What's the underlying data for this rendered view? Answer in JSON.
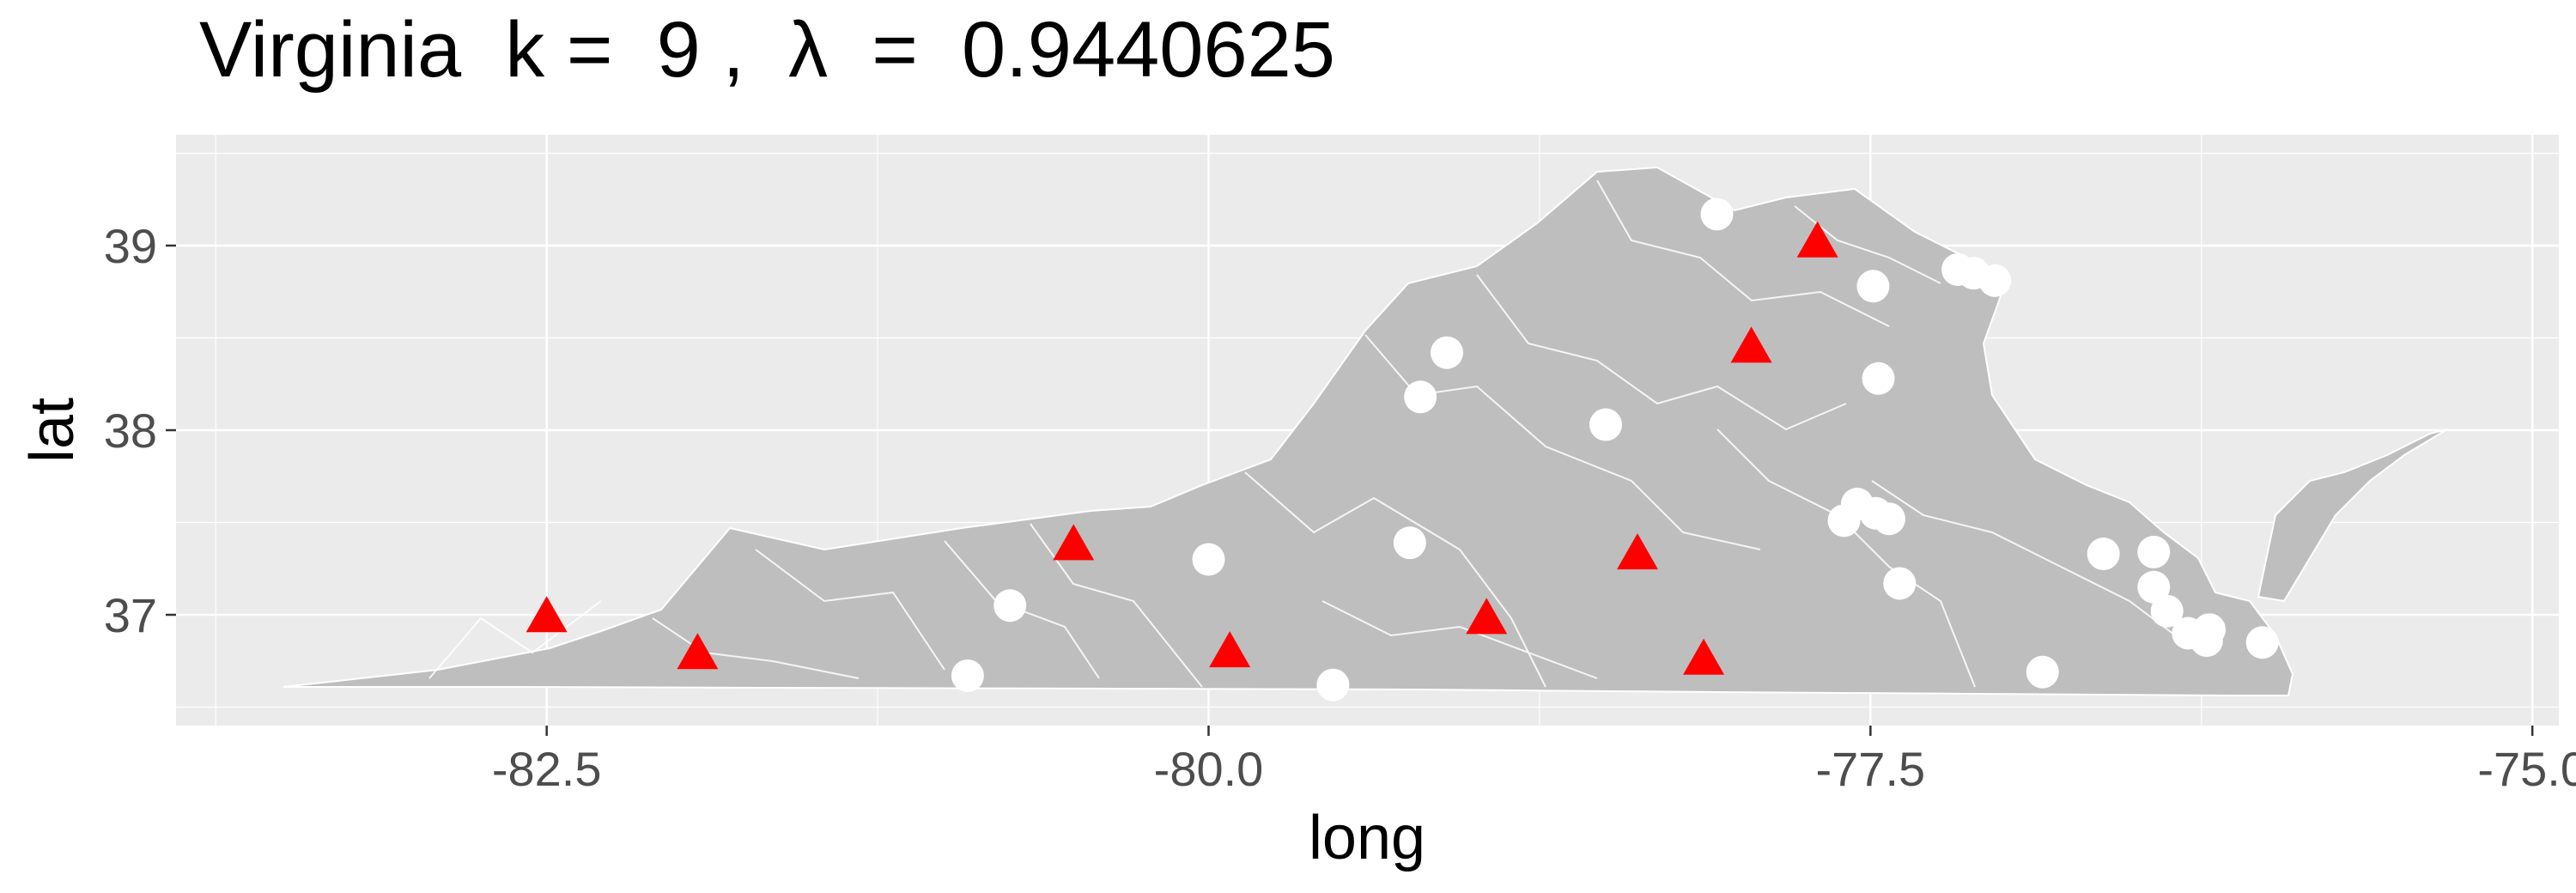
{
  "title": "Virginia  k =  9 ,  λ  =  0.9440625",
  "chart_data": {
    "type": "scatter",
    "title": "Virginia  k =  9 ,  λ  =  0.9440625",
    "xlabel": "long",
    "ylabel": "lat",
    "xlim": [
      -83.9,
      -74.9
    ],
    "ylim": [
      36.4,
      39.6
    ],
    "x_ticks": [
      -82.5,
      -80.0,
      -77.5,
      -75.0
    ],
    "x_tick_labels": [
      "-82.5",
      "-80.0",
      "-77.5",
      "-75.0"
    ],
    "y_ticks": [
      37,
      38,
      39
    ],
    "y_tick_labels": [
      "37",
      "38",
      "39"
    ],
    "grid": true,
    "legend": "none",
    "colors": {
      "panel": "#ebebeb",
      "grid": "#ffffff",
      "state_fill": "#bebebe",
      "boundary": "#ffffff",
      "centers": "#ff0000",
      "points": "#ffffff"
    },
    "series": [
      {
        "marker": "triangle",
        "color": "#ff0000",
        "points": [
          [
            -82.5,
            36.98
          ],
          [
            -81.93,
            36.78
          ],
          [
            -80.51,
            37.37
          ],
          [
            -79.92,
            36.79
          ],
          [
            -78.95,
            36.97
          ],
          [
            -78.38,
            37.32
          ],
          [
            -78.13,
            36.75
          ],
          [
            -77.95,
            38.44
          ],
          [
            -77.7,
            39.01
          ]
        ]
      },
      {
        "marker": "circle",
        "color": "#ffffff",
        "points": [
          [
            -78.08,
            39.17
          ],
          [
            -77.49,
            38.78
          ],
          [
            -77.17,
            38.87
          ],
          [
            -77.11,
            38.85
          ],
          [
            -77.03,
            38.81
          ],
          [
            -79.1,
            38.42
          ],
          [
            -79.2,
            38.18
          ],
          [
            -78.5,
            38.03
          ],
          [
            -77.47,
            38.28
          ],
          [
            -79.24,
            37.39
          ],
          [
            -80.0,
            37.3
          ],
          [
            -77.55,
            37.6
          ],
          [
            -77.48,
            37.55
          ],
          [
            -77.6,
            37.51
          ],
          [
            -77.43,
            37.52
          ],
          [
            -77.39,
            37.17
          ],
          [
            -76.62,
            37.33
          ],
          [
            -76.43,
            37.34
          ],
          [
            -76.43,
            37.15
          ],
          [
            -76.38,
            37.02
          ],
          [
            -76.3,
            36.9
          ],
          [
            -76.23,
            36.86
          ],
          [
            -76.22,
            36.92
          ],
          [
            -76.02,
            36.85
          ],
          [
            -76.85,
            36.69
          ],
          [
            -80.75,
            37.05
          ],
          [
            -80.91,
            36.67
          ],
          [
            -79.53,
            36.62
          ]
        ]
      }
    ]
  }
}
